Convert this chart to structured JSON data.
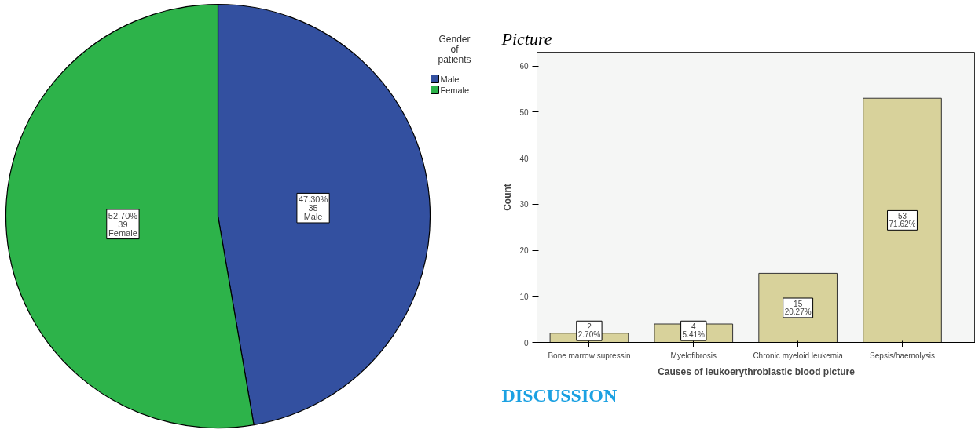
{
  "chart_data": [
    {
      "type": "pie",
      "legend_title": "Gender\nof\npatients",
      "legend": "top right",
      "categories": [
        "Male",
        "Female"
      ],
      "values": [
        35,
        39
      ],
      "colors": [
        "#3350a0",
        "#2db34a"
      ],
      "value_labels": [
        "47.30%\n35\nMale",
        "52.70%\n39\nFemale"
      ]
    },
    {
      "type": "bar",
      "xlabel": "Causes of leukoerythroblastic blood picture",
      "ylabel": "Count",
      "categories": [
        "Bone marrow supressin",
        "Myelofibrosis",
        "Chronic myeloid leukemia",
        "Sepsis/haemolysis"
      ],
      "values": [
        2,
        4,
        15,
        53
      ],
      "color": "#d8d29b",
      "value_labels": [
        "2\n2.70%",
        "4\n5.41%",
        "15\n20.27%",
        "53\n71.62%"
      ],
      "ylim": [
        0,
        63
      ],
      "yticks": [
        0,
        10,
        20,
        30,
        40,
        50,
        60
      ],
      "grid": false,
      "annotations": [
        "Picture",
        "DISCUSSION"
      ]
    }
  ]
}
